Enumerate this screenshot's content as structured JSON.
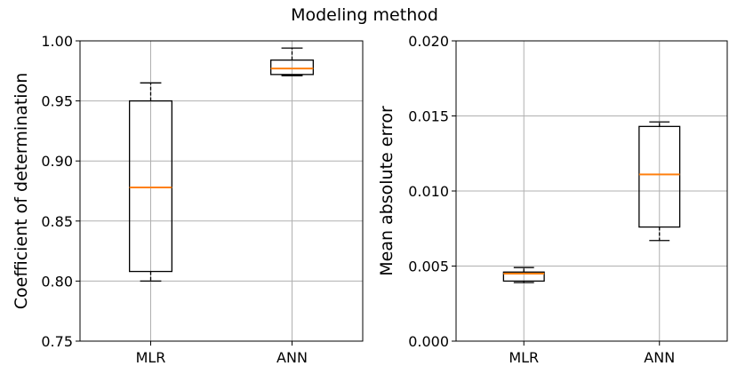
{
  "figure": {
    "title": "Modeling method"
  },
  "chart_data": [
    {
      "type": "box",
      "title": "",
      "xlabel": "",
      "ylabel": "Coefficient of determination",
      "categories": [
        "MLR",
        "ANN"
      ],
      "ylim": [
        0.75,
        1.0
      ],
      "yticks": [
        "0.75",
        "0.80",
        "0.85",
        "0.90",
        "0.95",
        "1.00"
      ],
      "grid": true,
      "boxes": [
        {
          "category": "MLR",
          "whisker_low": 0.8,
          "q1": 0.808,
          "median": 0.878,
          "q3": 0.95,
          "whisker_high": 0.965
        },
        {
          "category": "ANN",
          "whisker_low": 0.971,
          "q1": 0.972,
          "median": 0.977,
          "q3": 0.984,
          "whisker_high": 0.994
        }
      ]
    },
    {
      "type": "box",
      "title": "",
      "xlabel": "",
      "ylabel": "Mean absolute error",
      "categories": [
        "MLR",
        "ANN"
      ],
      "ylim": [
        0.0,
        0.02
      ],
      "yticks": [
        "0.000",
        "0.005",
        "0.010",
        "0.015",
        "0.020"
      ],
      "grid": true,
      "boxes": [
        {
          "category": "MLR",
          "whisker_low": 0.0039,
          "q1": 0.004,
          "median": 0.0045,
          "q3": 0.0046,
          "whisker_high": 0.0049
        },
        {
          "category": "ANN",
          "whisker_low": 0.0067,
          "q1": 0.0076,
          "median": 0.0111,
          "q3": 0.0143,
          "whisker_high": 0.0146
        }
      ]
    }
  ],
  "colors": {
    "box": "#000000",
    "median": "#ff7f0e",
    "grid": "#b0b0b0"
  }
}
